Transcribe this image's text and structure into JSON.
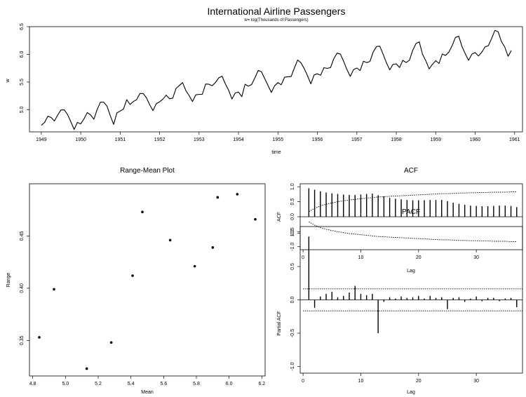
{
  "figure_title": "International Airline Passengers",
  "figure_subtitle": "w= log(Thousands of Passengers)",
  "chart_data": [
    {
      "id": "ts",
      "type": "line",
      "title": "",
      "xlabel": "time",
      "ylabel": "w",
      "xlim": [
        1948.7,
        1961.2
      ],
      "ylim": [
        4.6,
        6.5
      ],
      "xticks": [
        1949,
        1950,
        1951,
        1952,
        1953,
        1954,
        1955,
        1956,
        1957,
        1958,
        1959,
        1960,
        1961
      ],
      "yticks": [
        5.0,
        5.5,
        6.0,
        6.5
      ],
      "ytick_labels": [
        "5.0",
        "5.5",
        "6.0",
        "6.5"
      ],
      "x_start": 1949,
      "x_step": 0.0833333,
      "values": [
        4.718,
        4.771,
        4.883,
        4.86,
        4.796,
        4.905,
        4.997,
        4.997,
        4.913,
        4.779,
        4.644,
        4.771,
        4.745,
        4.836,
        4.949,
        4.905,
        4.828,
        5.004,
        5.136,
        5.136,
        5.063,
        4.89,
        4.736,
        4.942,
        4.977,
        5.011,
        5.182,
        5.094,
        5.147,
        5.182,
        5.293,
        5.293,
        5.215,
        5.088,
        4.984,
        5.112,
        5.142,
        5.193,
        5.263,
        5.198,
        5.209,
        5.384,
        5.438,
        5.489,
        5.342,
        5.252,
        5.147,
        5.268,
        5.278,
        5.278,
        5.464,
        5.46,
        5.434,
        5.493,
        5.576,
        5.606,
        5.468,
        5.352,
        5.193,
        5.303,
        5.318,
        5.236,
        5.46,
        5.425,
        5.455,
        5.576,
        5.71,
        5.684,
        5.557,
        5.434,
        5.313,
        5.434,
        5.489,
        5.451,
        5.587,
        5.595,
        5.598,
        5.753,
        5.897,
        5.849,
        5.743,
        5.613,
        5.468,
        5.628,
        5.649,
        5.624,
        5.759,
        5.746,
        5.762,
        5.924,
        6.023,
        6.004,
        5.872,
        5.724,
        5.602,
        5.724,
        5.753,
        5.707,
        5.875,
        5.852,
        5.872,
        6.045,
        6.142,
        6.146,
        6.001,
        5.849,
        5.72,
        5.817,
        5.829,
        5.762,
        5.892,
        5.852,
        5.894,
        6.075,
        6.196,
        6.225,
        6.001,
        5.883,
        5.737,
        5.82,
        5.886,
        5.835,
        6.006,
        5.981,
        6.04,
        6.157,
        6.306,
        6.326,
        6.138,
        6.009,
        5.892,
        6.004,
        6.033,
        5.969,
        6.038,
        6.133,
        6.157,
        6.282,
        6.433,
        6.407,
        6.23,
        6.133,
        5.966,
        6.068
      ]
    },
    {
      "id": "rm",
      "type": "scatter",
      "title": "Range-Mean Plot",
      "xlabel": "Mean",
      "ylabel": "Range",
      "xlim": [
        4.78,
        6.22
      ],
      "ylim": [
        0.316,
        0.5
      ],
      "xticks": [
        4.8,
        5.0,
        5.2,
        5.4,
        5.6,
        5.8,
        6.0,
        6.2
      ],
      "xtick_labels": [
        "4.8",
        "5.0",
        "5.2",
        "5.4",
        "5.6",
        "5.8",
        "6.0",
        "6.2"
      ],
      "yticks": [
        0.35,
        0.4,
        0.45
      ],
      "ytick_labels": [
        "0.35",
        "0.40",
        "0.45"
      ],
      "x": [
        4.84,
        4.93,
        5.13,
        5.28,
        5.41,
        5.47,
        5.64,
        5.79,
        5.9,
        5.93,
        6.05,
        6.16
      ],
      "y": [
        0.353,
        0.399,
        0.323,
        0.348,
        0.412,
        0.473,
        0.446,
        0.421,
        0.439,
        0.487,
        0.49,
        0.466
      ]
    },
    {
      "id": "acf",
      "type": "bar",
      "title": "ACF",
      "xlabel": "Lag",
      "ylabel": "ACF",
      "xlim": [
        -0.5,
        38
      ],
      "ylim": [
        -1.1,
        1.1
      ],
      "xticks": [
        0,
        10,
        20,
        30
      ],
      "yticks": [
        -1.0,
        -0.5,
        0.0,
        0.5,
        1.0
      ],
      "ytick_labels": [
        "-1.0",
        "-0.5",
        "0.0",
        "0.5",
        "1.0"
      ],
      "lags": [
        1,
        2,
        3,
        4,
        5,
        6,
        7,
        8,
        9,
        10,
        11,
        12,
        13,
        14,
        15,
        16,
        17,
        18,
        19,
        20,
        21,
        22,
        23,
        24,
        25,
        26,
        27,
        28,
        29,
        30,
        31,
        32,
        33,
        34,
        35,
        36,
        37
      ],
      "values": [
        0.95,
        0.9,
        0.85,
        0.81,
        0.78,
        0.76,
        0.74,
        0.73,
        0.73,
        0.74,
        0.76,
        0.77,
        0.72,
        0.68,
        0.63,
        0.6,
        0.58,
        0.56,
        0.55,
        0.55,
        0.55,
        0.56,
        0.56,
        0.56,
        0.52,
        0.47,
        0.43,
        0.4,
        0.37,
        0.36,
        0.35,
        0.35,
        0.36,
        0.37,
        0.37,
        0.36,
        0.32
      ],
      "conf_upper": [
        0.17,
        0.28,
        0.36,
        0.42,
        0.46,
        0.5,
        0.53,
        0.56,
        0.58,
        0.6,
        0.62,
        0.64,
        0.66,
        0.67,
        0.68,
        0.69,
        0.7,
        0.71,
        0.72,
        0.73,
        0.74,
        0.75,
        0.76,
        0.77,
        0.77,
        0.78,
        0.79,
        0.79,
        0.8,
        0.8,
        0.81,
        0.81,
        0.82,
        0.82,
        0.82,
        0.83,
        0.83
      ],
      "conf_lower": [
        -0.17,
        -0.28,
        -0.36,
        -0.42,
        -0.46,
        -0.5,
        -0.53,
        -0.56,
        -0.58,
        -0.6,
        -0.62,
        -0.64,
        -0.66,
        -0.67,
        -0.68,
        -0.69,
        -0.7,
        -0.71,
        -0.72,
        -0.73,
        -0.74,
        -0.75,
        -0.76,
        -0.77,
        -0.77,
        -0.78,
        -0.79,
        -0.79,
        -0.8,
        -0.8,
        -0.81,
        -0.81,
        -0.82,
        -0.82,
        -0.82,
        -0.83,
        -0.83
      ]
    },
    {
      "id": "pacf",
      "type": "bar",
      "title": "PACF",
      "xlabel": "Lag",
      "ylabel": "Partial ACF",
      "xlim": [
        -0.5,
        38
      ],
      "ylim": [
        -1.1,
        1.1
      ],
      "xticks": [
        0,
        10,
        20,
        30
      ],
      "yticks": [
        -1.0,
        -0.5,
        0.0,
        0.5,
        1.0
      ],
      "ytick_labels": [
        "-1.0",
        "-0.5",
        "0.0",
        "0.5",
        "1.0"
      ],
      "lags": [
        1,
        2,
        3,
        4,
        5,
        6,
        7,
        8,
        9,
        10,
        11,
        12,
        13,
        14,
        15,
        16,
        17,
        18,
        19,
        20,
        21,
        22,
        23,
        24,
        25,
        26,
        27,
        28,
        29,
        30,
        31,
        32,
        33,
        34,
        35,
        36,
        37
      ],
      "values": [
        0.95,
        -0.12,
        0.05,
        0.09,
        0.12,
        0.04,
        0.06,
        0.11,
        0.21,
        0.09,
        0.07,
        0.09,
        -0.5,
        -0.03,
        0.04,
        0.02,
        0.05,
        0.03,
        0.04,
        0.06,
        0.02,
        0.06,
        0.03,
        0.04,
        -0.14,
        0.03,
        0.04,
        -0.03,
        0.02,
        0.05,
        -0.02,
        0.03,
        0.03,
        -0.02,
        0.02,
        0.03,
        -0.11
      ],
      "conf_upper": 0.165,
      "conf_lower": -0.165
    }
  ]
}
